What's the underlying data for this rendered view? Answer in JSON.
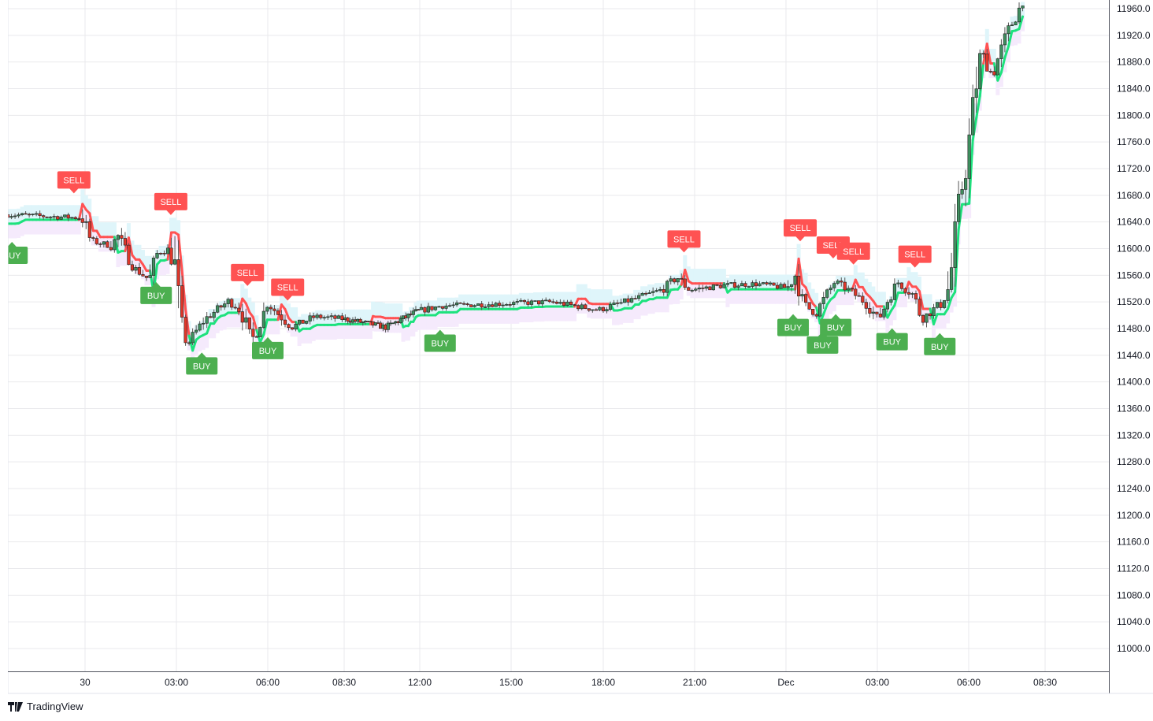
{
  "chart_data": {
    "type": "candlestick",
    "title": "",
    "price_axis": {
      "ylim": [
        10990,
        11980
      ],
      "ticks": [
        "11960.0",
        "11920.0",
        "11880.0",
        "11840.0",
        "11800.0",
        "11760.0",
        "11720.0",
        "11680.0",
        "11640.0",
        "11600.0",
        "11560.0",
        "11520.0",
        "11480.0",
        "11440.0",
        "11400.0",
        "11360.0",
        "11320.0",
        "11280.0",
        "11240.0",
        "11200.0",
        "11160.0",
        "11120.0",
        "11080.0",
        "11040.0",
        "11000.0"
      ]
    },
    "time_axis": {
      "ticks": [
        {
          "label": "30",
          "time": "11-30 00:00"
        },
        {
          "label": "03:00",
          "time": "11-30 03:00"
        },
        {
          "label": "06:00",
          "time": "11-30 06:00"
        },
        {
          "label": "08:30",
          "time": "11-30 08:30"
        },
        {
          "label": "12:00",
          "time": "11-30 12:00"
        },
        {
          "label": "15:00",
          "time": "11-30 15:00"
        },
        {
          "label": "18:00",
          "time": "11-30 18:00"
        },
        {
          "label": "21:00",
          "time": "11-30 21:00"
        },
        {
          "label": "Dec",
          "time": "12-01 00:00"
        },
        {
          "label": "03:00",
          "time": "12-01 03:00"
        },
        {
          "label": "06:00",
          "time": "12-01 06:00"
        },
        {
          "label": "08:30",
          "time": "12-01 08:30"
        }
      ]
    },
    "price_path": [
      [
        "11-29 21:28",
        11651
      ],
      [
        "11-29 23:55",
        11646
      ],
      [
        "11-30 00:11",
        11612
      ],
      [
        "11-30 00:50",
        11604
      ],
      [
        "11-30 01:05",
        11618
      ],
      [
        "11-30 01:36",
        11571
      ],
      [
        "11-30 02:07",
        11553
      ],
      [
        "11-30 02:23",
        11595
      ],
      [
        "11-30 02:46",
        11597
      ],
      [
        "11-30 02:57",
        11571
      ],
      [
        "11-30 03:09",
        11488
      ],
      [
        "11-30 03:20",
        11455
      ],
      [
        "11-30 03:56",
        11494
      ],
      [
        "11-30 04:42",
        11521
      ],
      [
        "11-30 05:05",
        11510
      ],
      [
        "11-30 05:29",
        11462
      ],
      [
        "11-30 06:00",
        11518
      ],
      [
        "11-30 06:46",
        11482
      ],
      [
        "11-30 07:33",
        11498
      ],
      [
        "11-30 08:37",
        11494
      ],
      [
        "11-30 10:26",
        11482
      ],
      [
        "11-30 11:54",
        11506
      ],
      [
        "11-30 12:42",
        11514
      ],
      [
        "11-30 15:02",
        11518
      ],
      [
        "11-30 16:19",
        11520
      ],
      [
        "11-30 17:51",
        11508
      ],
      [
        "11-30 19:08",
        11526
      ],
      [
        "11-30 19:55",
        11538
      ],
      [
        "11-30 20:26",
        11557
      ],
      [
        "11-30 20:49",
        11538
      ],
      [
        "11-30 21:59",
        11545
      ],
      [
        "11-30 23:01",
        11547
      ],
      [
        "12-01 00:03",
        11541
      ],
      [
        "12-01 00:19",
        11562
      ],
      [
        "12-01 00:34",
        11518
      ],
      [
        "12-01 00:57",
        11502
      ],
      [
        "12-01 01:36",
        11550
      ],
      [
        "12-01 02:07",
        11536
      ],
      [
        "12-01 02:38",
        11518
      ],
      [
        "12-01 03:02",
        11494
      ],
      [
        "12-01 03:25",
        11530
      ],
      [
        "12-01 03:40",
        11550
      ],
      [
        "12-01 04:11",
        11530
      ],
      [
        "12-01 04:27",
        11494
      ],
      [
        "12-01 05:05",
        11518
      ],
      [
        "12-01 05:21",
        11541
      ],
      [
        "12-01 05:32",
        11606
      ],
      [
        "12-01 05:41",
        11668
      ],
      [
        "12-01 05:57",
        11737
      ],
      [
        "12-01 06:12",
        11831
      ],
      [
        "12-01 06:23",
        11896
      ],
      [
        "12-01 06:46",
        11861
      ],
      [
        "12-01 07:17",
        11926
      ],
      [
        "12-01 07:48",
        11973
      ]
    ],
    "signals": [
      {
        "type": "SELL",
        "time": "11-29 23:38"
      },
      {
        "type": "SELL",
        "time": "11-30 02:49"
      },
      {
        "type": "SELL",
        "time": "11-30 05:20"
      },
      {
        "type": "SELL",
        "time": "11-30 06:39"
      },
      {
        "type": "SELL",
        "time": "11-30 20:39"
      },
      {
        "type": "SELL",
        "time": "12-01 00:28"
      },
      {
        "type": "SELL",
        "time": "12-01 01:33"
      },
      {
        "type": "SELL",
        "time": "12-01 02:13"
      },
      {
        "type": "SELL",
        "time": "12-01 04:14"
      },
      {
        "type": "BUY",
        "time": "11-29 21:36"
      },
      {
        "type": "BUY",
        "time": "11-30 02:20"
      },
      {
        "type": "BUY",
        "time": "11-30 03:50"
      },
      {
        "type": "BUY",
        "time": "11-30 06:00"
      },
      {
        "type": "BUY",
        "time": "11-30 12:40"
      },
      {
        "type": "BUY",
        "time": "12-01 00:14"
      },
      {
        "type": "BUY",
        "time": "12-01 01:12"
      },
      {
        "type": "BUY",
        "time": "12-01 01:38"
      },
      {
        "type": "BUY",
        "time": "12-01 03:29"
      },
      {
        "type": "BUY",
        "time": "12-01 05:03"
      }
    ],
    "colors": {
      "up_candle": "#3f8f5f",
      "down_candle": "#e0372a",
      "candle_border": "#1e1e1e",
      "trend_up": "#1de27d",
      "trend_down": "#ff5252",
      "band_upper": "#dff5fa",
      "band_lower": "#f5eafc",
      "sell_label": "#ff5252",
      "buy_label": "#4caf50",
      "grid": "#e9e9ec"
    },
    "grid": true
  },
  "branding": {
    "logo_text": "TradingView"
  }
}
